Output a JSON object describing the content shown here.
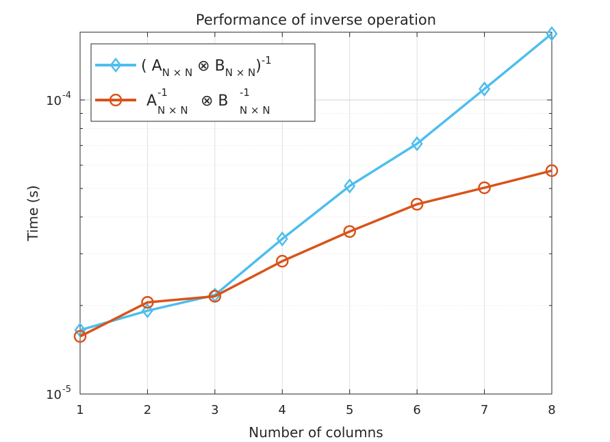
{
  "chart_data": {
    "type": "line",
    "title": "Performance of inverse operation",
    "xlabel": "Number of columns",
    "ylabel": "Time (s)",
    "x": [
      1,
      2,
      3,
      4,
      5,
      6,
      7,
      8
    ],
    "xlim": [
      1,
      8
    ],
    "ylim": [
      1e-05,
      0.00017
    ],
    "yscale": "log",
    "grid": true,
    "legend_position": "top-left",
    "ytick_labels": [
      {
        "base": "10",
        "exp": "-5",
        "value": 1e-05
      },
      {
        "base": "10",
        "exp": "-4",
        "value": 0.0001
      }
    ],
    "xtick_labels": [
      "1",
      "2",
      "3",
      "4",
      "5",
      "6",
      "7",
      "8"
    ],
    "series": [
      {
        "name": "( A_{N × N} ⊗ B_{N × N})^{-1}",
        "legend_parts": {
          "open": "( A",
          "a_sub": "N × N",
          "op": " ⊗ B",
          "b_sub": "N × N",
          "close": ")",
          "sup": "-1"
        },
        "marker": "diamond",
        "color": "#4DBEEE",
        "values": [
          1.65e-05,
          1.92e-05,
          2.17e-05,
          3.37e-05,
          5.1e-05,
          7.1e-05,
          0.000109,
          0.000168
        ]
      },
      {
        "name": "A^{-1}_{N × N} ⊗ B^{-1}_{N × N}",
        "legend_parts": {
          "a": "A",
          "a_sup": "-1",
          "a_sub": "N × N",
          "op": " ⊗ B",
          "b_sup": "-1",
          "b_sub": "N × N"
        },
        "marker": "circle",
        "color": "#D95319",
        "values": [
          1.57e-05,
          2.05e-05,
          2.15e-05,
          2.83e-05,
          3.57e-05,
          4.42e-05,
          5.03e-05,
          5.75e-05
        ]
      }
    ]
  }
}
